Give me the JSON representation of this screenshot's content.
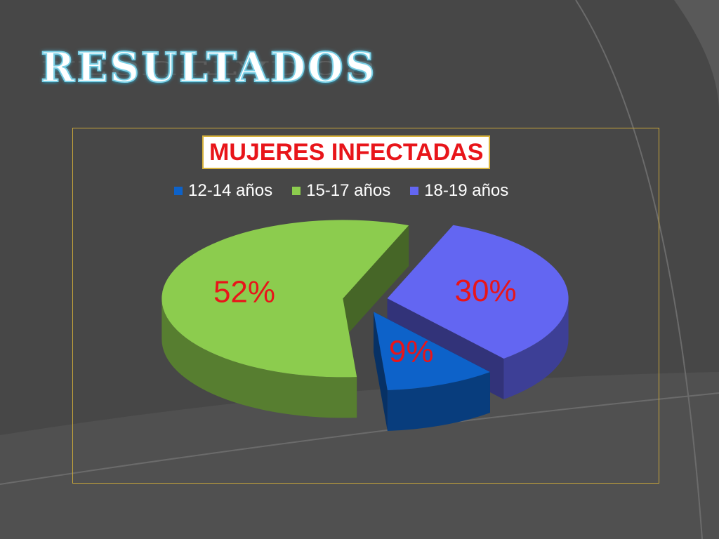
{
  "slide": {
    "title": "RESULTADOS"
  },
  "chart_data": {
    "type": "pie",
    "title": "MUJERES INFECTADAS",
    "categories": [
      "12-14 años",
      "15-17 años",
      "18-19 años"
    ],
    "values": [
      9,
      52,
      30
    ],
    "labels": [
      "9%",
      "52%",
      "30%"
    ],
    "colors": [
      "#0d62c9",
      "#8ccc4e",
      "#6366f2"
    ],
    "label_color": "#e8151a",
    "legend_position": "top",
    "exploded": true
  }
}
